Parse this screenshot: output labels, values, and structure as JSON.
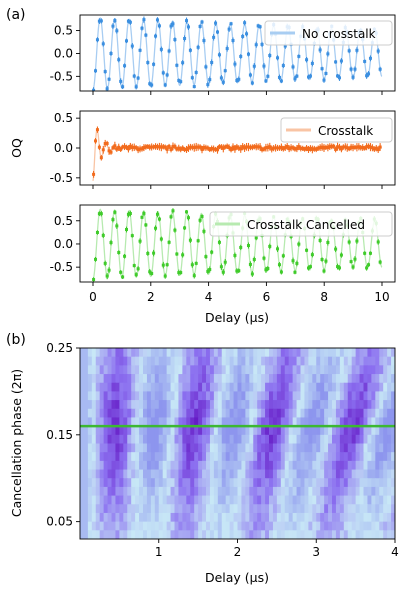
{
  "panel_labels": [
    "(a)",
    "(b)"
  ],
  "chart_data": [
    {
      "type": "scatter",
      "panel": "(a)",
      "shared_xlabel": "Delay (μs)",
      "shared_ylabel": "OQ",
      "xlim": [
        -0.45,
        10.45
      ],
      "xticks": [
        0,
        2,
        4,
        6,
        8,
        10
      ],
      "subplots": [
        {
          "legend": "No crosstalk",
          "legend_position": "top-right",
          "color": "#3b8fe0",
          "fit_color": "#a8cdf2",
          "ylim": [
            -0.82,
            0.84
          ],
          "yticks": [
            -0.5,
            0.0,
            0.5
          ],
          "model": {
            "amplitude_start": 0.78,
            "amplitude_end": 0.5,
            "period_us": 0.5,
            "baseline": 0.0
          }
        },
        {
          "legend": "Crosstalk",
          "legend_position": "top-right",
          "color": "#f26b1d",
          "fit_color": "#f9c4a4",
          "ylim": [
            -0.62,
            0.62
          ],
          "yticks": [
            -0.5,
            0.0,
            0.5
          ],
          "model": {
            "amplitude_start": 0.55,
            "decay_us": 0.25,
            "period_us": 0.3,
            "noise": 0.03,
            "baseline": 0.0
          }
        },
        {
          "legend": "Crosstalk Cancelled",
          "legend_position": "top-right",
          "color": "#3fcb2a",
          "fit_color": "#b7eab0",
          "ylim": [
            -0.82,
            0.84
          ],
          "yticks": [
            -0.5,
            0.0,
            0.5
          ],
          "model": {
            "amplitude_start": 0.75,
            "amplitude_end": 0.5,
            "period_us": 0.5,
            "baseline": 0.0
          }
        }
      ]
    },
    {
      "type": "heatmap",
      "panel": "(b)",
      "xlabel": "Delay (μs)",
      "ylabel": "Cancellation phase (2π)",
      "xlim": [
        0.0,
        4.0
      ],
      "ylim": [
        0.03,
        0.25
      ],
      "xticks": [
        1,
        2,
        3,
        4
      ],
      "yticks": [
        "0.05",
        "0.15",
        "0.25"
      ],
      "ytick_values": [
        0.05,
        0.15,
        0.25
      ],
      "colormap": [
        "#5a00b8",
        "#8b6ff0",
        "#c8e8f6",
        "#8d95ee"
      ],
      "optimal_phase": 0.16,
      "optimal_line_color": "#3cb832",
      "rows": 22,
      "columns": 80,
      "dark_band_centers_us": [
        0.45,
        1.45,
        2.45,
        3.45
      ],
      "band_period_us": 1.0
    }
  ]
}
